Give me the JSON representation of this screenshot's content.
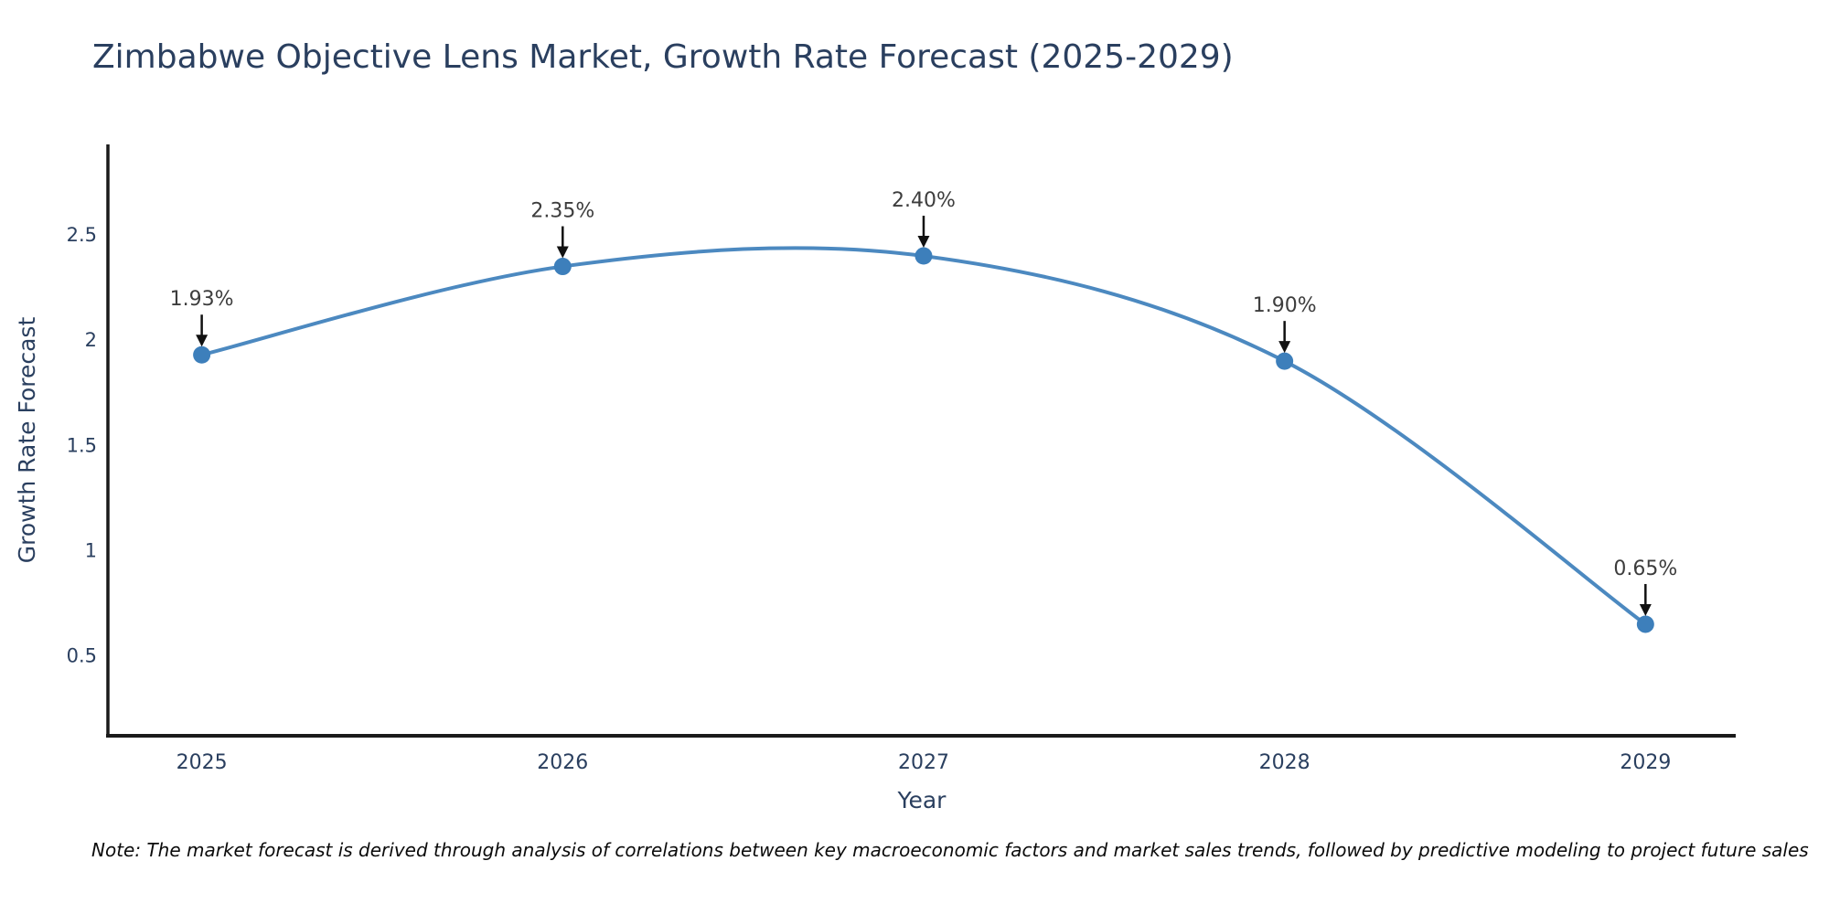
{
  "page": {
    "title": "Zimbabwe Objective Lens Market, Growth Rate Forecast (2025-2029)",
    "note": "Note: The market forecast is derived through analysis of correlations between key macroeconomic factors and market sales trends, followed by predictive modeling to project future sales"
  },
  "chart_data": {
    "type": "line",
    "title": "Zimbabwe Objective Lens Market, Growth Rate Forecast (2025-2029)",
    "xlabel": "Year",
    "ylabel": "Growth Rate Forecast",
    "x": [
      2025,
      2026,
      2027,
      2028,
      2029
    ],
    "series": [
      {
        "name": "Growth Rate Forecast",
        "values": [
          1.93,
          2.35,
          2.4,
          1.9,
          0.65
        ]
      }
    ],
    "point_labels": [
      "1.93%",
      "2.35%",
      "2.40%",
      "1.90%",
      "0.65%"
    ],
    "xticks": [
      "2025",
      "2026",
      "2027",
      "2028",
      "2029"
    ],
    "yticks": [
      "0.5",
      "1",
      "1.5",
      "2",
      "2.5"
    ],
    "xlim": [
      2024.74,
      2029.25
    ],
    "ylim": [
      0.12,
      2.93
    ],
    "grid": false,
    "legend": false,
    "line_shape": "spline",
    "annotation_arrows": true,
    "colors": {
      "line": "#4c89c0",
      "marker": "#3d7fbb",
      "title": "#2a3f5f",
      "tick": "#2a3f5f",
      "axis_title": "#2a3f5f",
      "annotation": "#3d3d3d",
      "arrow": "#111111",
      "axis_line": "#1a1a1a",
      "note": "#0b0b0b",
      "background": "#ffffff"
    }
  }
}
